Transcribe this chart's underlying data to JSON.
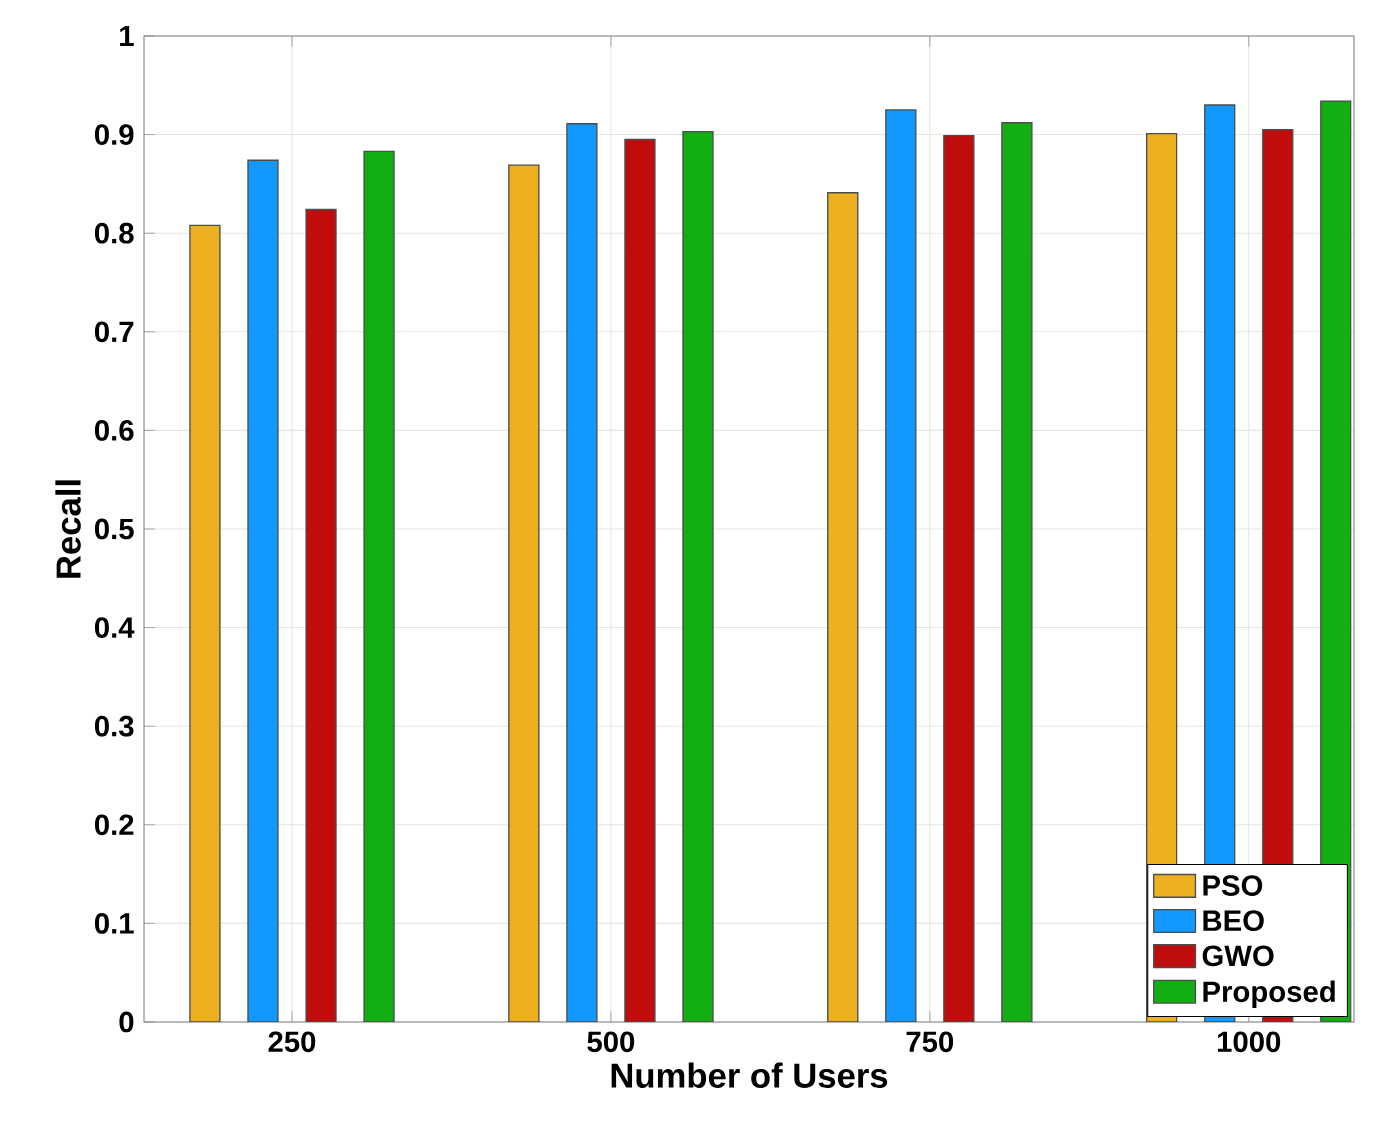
{
  "chart_data": {
    "type": "bar",
    "xlabel": "Number of Users",
    "ylabel": "Recall",
    "categories": [
      "250",
      "500",
      "750",
      "1000"
    ],
    "series": [
      {
        "name": "PSO",
        "color": "#edb120",
        "values": [
          0.808,
          0.869,
          0.841,
          0.901
        ]
      },
      {
        "name": "BEO",
        "color": "#1199ff",
        "values": [
          0.874,
          0.911,
          0.925,
          0.93
        ]
      },
      {
        "name": "GWO",
        "color": "#c00c0c",
        "values": [
          0.824,
          0.895,
          0.899,
          0.905
        ]
      },
      {
        "name": "Proposed",
        "color": "#12ae12",
        "values": [
          0.883,
          0.903,
          0.912,
          0.934
        ]
      }
    ],
    "ylim": [
      0,
      1
    ],
    "yticks": [
      0,
      0.1,
      0.2,
      0.3,
      0.4,
      0.5,
      0.6,
      0.7,
      0.8,
      0.9,
      1
    ],
    "grid": true,
    "legend": "bottom right"
  }
}
